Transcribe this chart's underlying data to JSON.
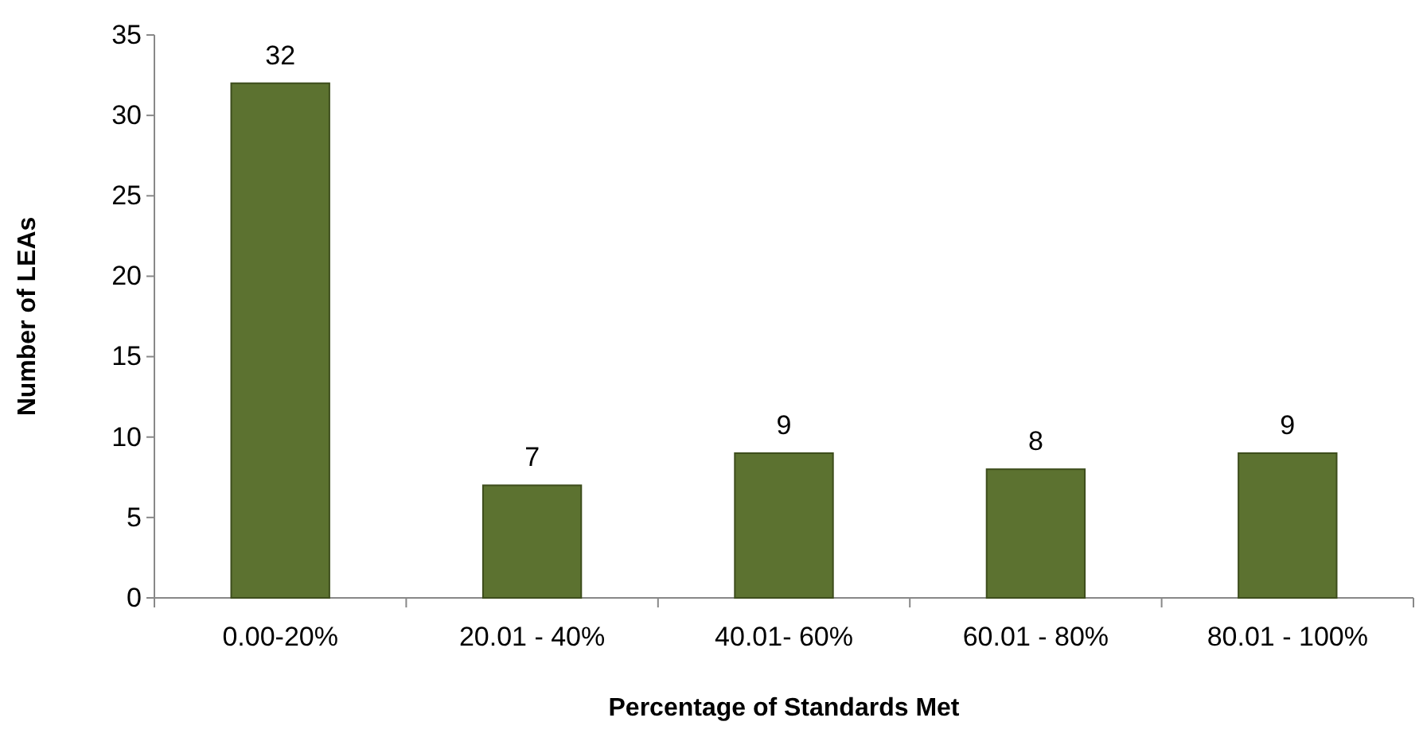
{
  "chart_data": {
    "type": "bar",
    "xlabel": "Percentage of Standards Met",
    "ylabel": "Number of LEAs",
    "categories": [
      "0.00-20%",
      "20.01 - 40%",
      "40.01- 60%",
      "60.01 - 80%",
      "80.01 - 100%"
    ],
    "values": [
      32,
      7,
      9,
      8,
      9
    ],
    "color": "#5c7230",
    "ylim": [
      0,
      35
    ],
    "yticks": [
      0,
      5,
      10,
      15,
      20,
      25,
      30,
      35
    ],
    "grid": false,
    "data_labels": true
  }
}
